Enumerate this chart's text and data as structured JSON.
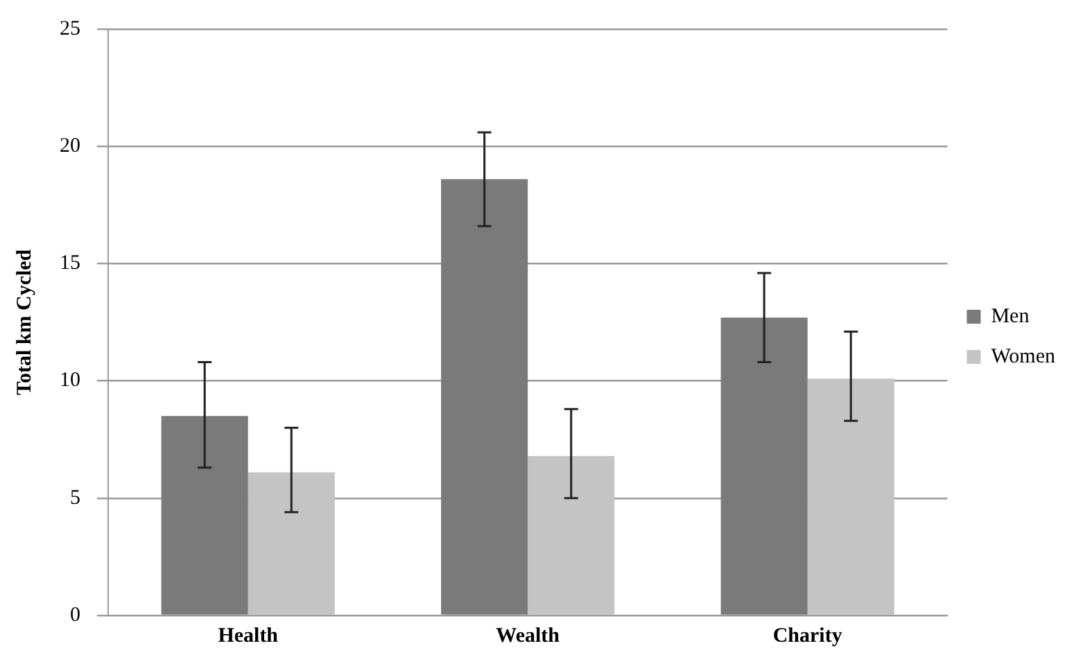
{
  "chart_data": {
    "type": "bar",
    "ylabel": "Total km Cycled",
    "categories": [
      "Health",
      "Wealth",
      "Charity"
    ],
    "series": [
      {
        "name": "Men",
        "color": "#7a7a7a",
        "values": [
          8.5,
          18.6,
          12.7
        ],
        "errors": [
          [
            6.3,
            10.8
          ],
          [
            16.6,
            20.6
          ],
          [
            10.8,
            14.6
          ]
        ]
      },
      {
        "name": "Women",
        "color": "#c4c4c4",
        "values": [
          6.1,
          6.8,
          10.1
        ],
        "errors": [
          [
            4.4,
            8.0
          ],
          [
            5.0,
            8.8
          ],
          [
            8.3,
            12.1
          ]
        ]
      }
    ],
    "ylim": [
      0,
      25
    ],
    "yticks": [
      0,
      5,
      10,
      15,
      20,
      25
    ],
    "grid": "y",
    "legend": "right"
  }
}
